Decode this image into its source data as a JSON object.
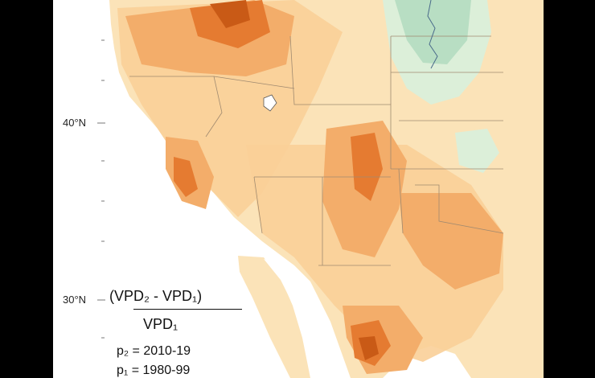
{
  "map": {
    "latitude_labels": [
      {
        "label": "40°N",
        "lat": 40
      },
      {
        "label": "30°N",
        "lat": 30
      }
    ],
    "formula": {
      "numerator": "(VPD₂ - VPD₁)",
      "denominator": "VPD₁",
      "period2": "p₂ = 2010-19",
      "period1": "p₁ = 1980-99"
    },
    "colors": {
      "background": "#000000",
      "ocean": "#ffffff",
      "land_base": "#fbe3b8",
      "light_orange": "#f9cf98",
      "mid_orange": "#f3ad6a",
      "dark_orange": "#e57b31",
      "deepest": "#c95a16",
      "green_light": "#dcefd9",
      "green_mid": "#b8dec3",
      "borders": "#a08a70",
      "lake": "#ffffff",
      "rivers": "#4a6a8a"
    }
  }
}
